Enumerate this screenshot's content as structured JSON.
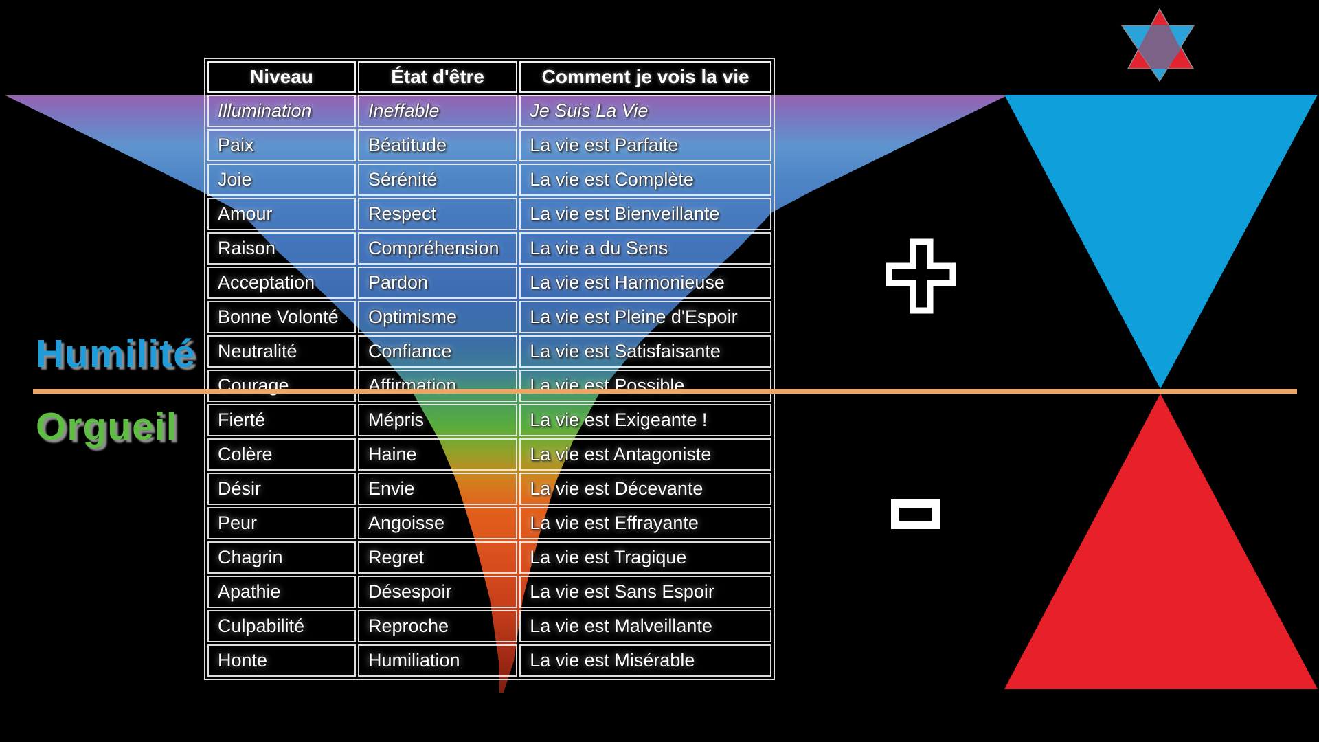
{
  "table": {
    "headers": [
      "Niveau",
      "État d'être",
      "Comment je vois la vie"
    ],
    "rows": [
      {
        "niveau": "Illumination",
        "etat": "Ineffable",
        "vie": "Je Suis La Vie",
        "italic": true
      },
      {
        "niveau": "Paix",
        "etat": "Béatitude",
        "vie": "La vie est Parfaite",
        "italic": false
      },
      {
        "niveau": "Joie",
        "etat": "Sérénité",
        "vie": "La vie est Complète",
        "italic": false
      },
      {
        "niveau": "Amour",
        "etat": "Respect",
        "vie": "La vie est Bienveillante",
        "italic": false
      },
      {
        "niveau": "Raison",
        "etat": "Compréhension",
        "vie": "La vie a du Sens",
        "italic": false
      },
      {
        "niveau": "Acceptation",
        "etat": "Pardon",
        "vie": "La vie est Harmonieuse",
        "italic": false
      },
      {
        "niveau": "Bonne Volonté",
        "etat": "Optimisme",
        "vie": "La vie est Pleine d'Espoir",
        "italic": false
      },
      {
        "niveau": "Neutralité",
        "etat": "Confiance",
        "vie": "La vie est Satisfaisante",
        "italic": false
      },
      {
        "niveau": "Courage",
        "etat": "Affirmation",
        "vie": "La vie est Possible",
        "italic": false
      },
      {
        "niveau": "Fierté",
        "etat": "Mépris",
        "vie": "La vie est Exigeante !",
        "italic": false
      },
      {
        "niveau": "Colère",
        "etat": "Haine",
        "vie": "La vie est Antagoniste",
        "italic": false
      },
      {
        "niveau": "Désir",
        "etat": "Envie",
        "vie": "La vie est Décevante",
        "italic": false
      },
      {
        "niveau": "Peur",
        "etat": "Angoisse",
        "vie": "La vie est Effrayante",
        "italic": false
      },
      {
        "niveau": "Chagrin",
        "etat": "Regret",
        "vie": "La vie est Tragique",
        "italic": false
      },
      {
        "niveau": "Apathie",
        "etat": "Désespoir",
        "vie": "La vie est Sans Espoir",
        "italic": false
      },
      {
        "niveau": "Culpabilité",
        "etat": "Reproche",
        "vie": "La vie est Malveillante",
        "italic": false
      },
      {
        "niveau": "Honte",
        "etat": "Humiliation",
        "vie": "La vie est Misérable",
        "italic": false
      }
    ]
  },
  "labels": {
    "humilite": "Humilité",
    "orgueil": "Orgueil"
  },
  "icons": {
    "plus": "plus-sign",
    "minus": "minus-sign",
    "hexagram": "star-of-david",
    "hourglass_top": "blue-inverted-triangle",
    "hourglass_bottom": "red-triangle"
  },
  "colors": {
    "background": "#000000",
    "humilite_blue": "#1F9CD9",
    "orgueil_green": "#5FBD43",
    "divider_orange": "#F2A55F",
    "triangle_blue": "#0FA0DC",
    "triangle_red": "#E8202A",
    "star_red": "#E32330",
    "star_blue": "#2AA3DB",
    "star_overlap_purple": "#7D6287",
    "funnel_gradient": [
      "#9A5FB0",
      "#5E94CE",
      "#4578BD",
      "#3B6FA6",
      "#58AC3C",
      "#E2611C",
      "#C23C1A",
      "#7C1D0F"
    ]
  }
}
